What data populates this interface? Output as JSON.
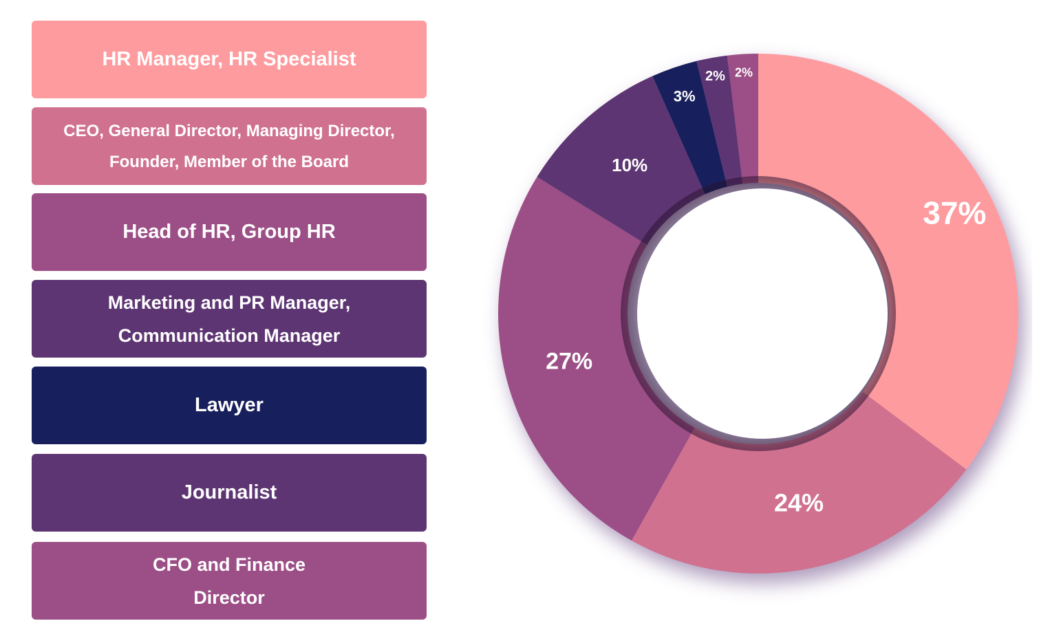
{
  "chart_data": {
    "type": "pie",
    "donut": true,
    "categories": [
      "HR Manager, HR Specialist",
      "CEO, General Director, Managing Director,\nFounder, Member of the Board",
      "Head of HR, Group HR",
      "Marketing and PR Manager,\nCommunication Manager",
      "Lawyer",
      "Journalist",
      "CFO and Finance\nDirector"
    ],
    "values": [
      37,
      24,
      27,
      10,
      3,
      2,
      2
    ],
    "value_labels": [
      "37%",
      "24%",
      "27%",
      "10%",
      "3%",
      "2%",
      "2%"
    ],
    "colors": [
      "#fe9b9f",
      "#d07190",
      "#9c4f86",
      "#5e3573",
      "#17205c",
      "#5e3573",
      "#9c4f86"
    ],
    "legend_position": "left"
  }
}
